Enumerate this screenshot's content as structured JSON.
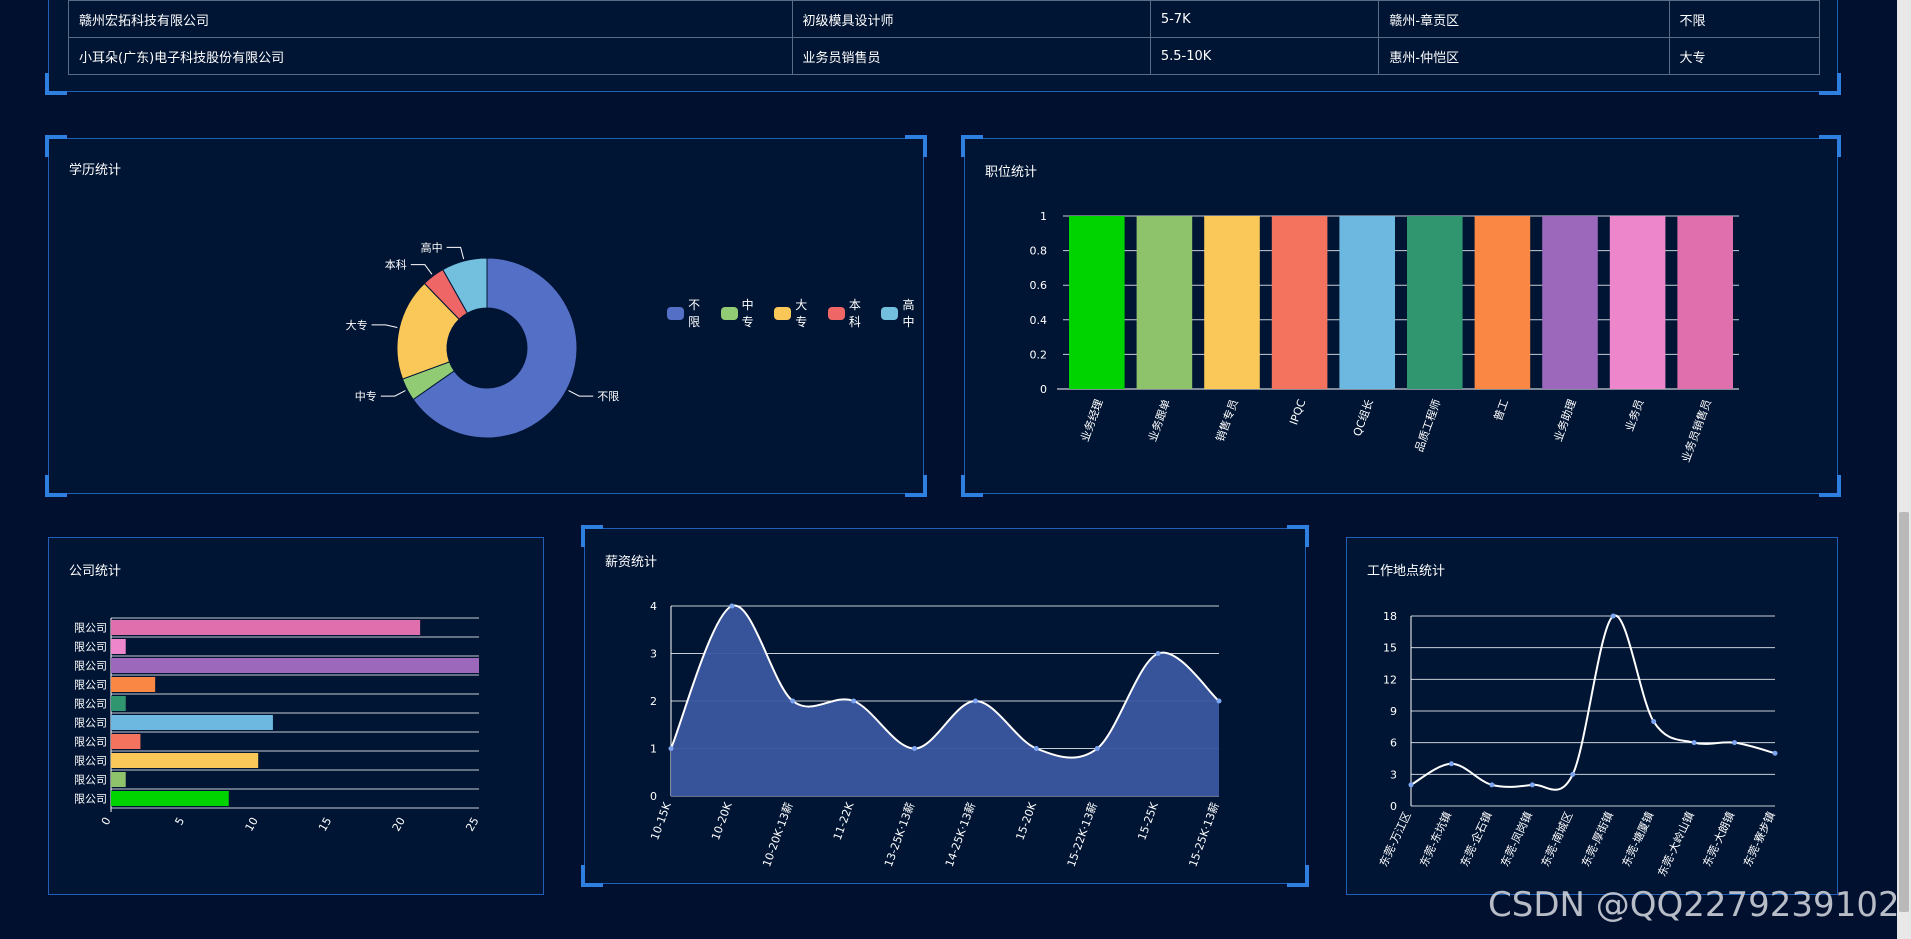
{
  "colors": {
    "bg": "#00102e",
    "panel_border": "#1f5fb8",
    "corner": "#2f7fe0",
    "grid": "#c8cdd6"
  },
  "table": {
    "rows": [
      [
        "赣州宏拓科技有限公司",
        "初级模具设计师",
        "5-7K",
        "赣州-章贡区",
        "不限"
      ],
      [
        "小耳朵(广东)电子科技股份有限公司",
        "业务员销售员",
        "5.5-10K",
        "惠州-仲恺区",
        "大专"
      ]
    ]
  },
  "panels": {
    "education": {
      "title": "学历统计"
    },
    "position": {
      "title": "职位统计"
    },
    "company": {
      "title": "公司统计"
    },
    "salary": {
      "title": "薪资统计"
    },
    "location": {
      "title": "工作地点统计"
    }
  },
  "chart_data": [
    {
      "type": "pie",
      "title": "学历统计",
      "donut": true,
      "legend": "top-right",
      "categories": [
        "不限",
        "中专",
        "大专",
        "本科",
        "高中"
      ],
      "values": [
        32,
        2,
        9,
        2,
        4
      ],
      "colors": [
        "#5470c6",
        "#91cc75",
        "#fac858",
        "#ee6666",
        "#73c0de"
      ]
    },
    {
      "type": "bar",
      "title": "职位统计",
      "categories": [
        "业务经理",
        "业务跟单",
        "销售专员",
        "IPQC",
        "QC组长",
        "品质工程师",
        "普工",
        "业务助理",
        "业务员",
        "业务员销售员"
      ],
      "values": [
        1,
        1,
        1,
        1,
        1,
        1,
        1,
        1,
        1,
        1
      ],
      "colors": [
        "#00d400",
        "#8ec36c",
        "#fac858",
        "#f4735e",
        "#6cb8e0",
        "#2f9670",
        "#fb8744",
        "#9b68bb",
        "#ee86cc",
        "#e070ad"
      ],
      "ylim": [
        0,
        1
      ],
      "yticks": [
        0,
        0.2,
        0.4,
        0.6,
        0.8,
        1
      ],
      "grid": true
    },
    {
      "type": "bar",
      "orientation": "horizontal",
      "title": "公司统计",
      "categories": [
        "限公司",
        "限公司",
        "限公司",
        "限公司",
        "限公司",
        "限公司",
        "限公司",
        "限公司",
        "限公司",
        "限公司"
      ],
      "values": [
        8,
        1,
        10,
        2,
        11,
        1,
        3,
        25,
        1,
        21
      ],
      "colors": [
        "#00d400",
        "#8ec36c",
        "#fac858",
        "#f4735e",
        "#6cb8e0",
        "#2f9670",
        "#fb8744",
        "#9b68bb",
        "#ee86cc",
        "#e070ad"
      ],
      "xlim": [
        0,
        25
      ],
      "xticks": [
        0,
        5,
        10,
        15,
        20,
        25
      ],
      "grid": true
    },
    {
      "type": "area",
      "title": "薪资统计",
      "categories": [
        "10-15K",
        "10-20K",
        "10-20K·13薪",
        "11-22K",
        "13-25K·13薪",
        "14-25K·13薪",
        "15-20K",
        "15-22K·13薪",
        "15-25K",
        "15-25K·13薪"
      ],
      "values": [
        1,
        4,
        2,
        2,
        1,
        2,
        1,
        1,
        3,
        2
      ],
      "ylim": [
        0,
        4
      ],
      "yticks": [
        0,
        1,
        2,
        3,
        4
      ],
      "color": "#3a56a0",
      "grid": true
    },
    {
      "type": "line",
      "title": "工作地点统计",
      "categories": [
        "东莞-万江区",
        "东莞-东坑镇",
        "东莞-企石镇",
        "东莞-凤岗镇",
        "东莞-南城区",
        "东莞-厚街镇",
        "东莞-塘厦镇",
        "东莞-大岭山镇",
        "东莞-大朗镇",
        "东莞-寮步镇"
      ],
      "values": [
        2,
        4,
        2,
        2,
        3,
        18,
        8,
        6,
        6,
        5
      ],
      "ylim": [
        0,
        18
      ],
      "yticks": [
        0,
        3,
        6,
        9,
        12,
        15,
        18
      ],
      "grid": true
    }
  ],
  "watermark": "CSDN @QQ2279239102"
}
